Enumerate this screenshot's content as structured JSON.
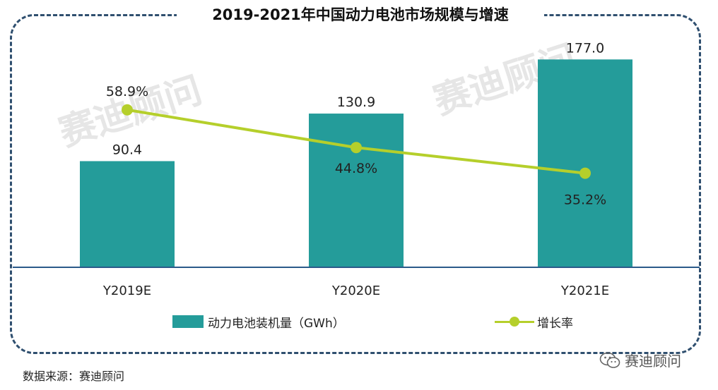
{
  "title": "2019-2021年中国动力电池市场规模与增速",
  "chart_data": {
    "type": "bar",
    "categories": [
      "Y2019E",
      "Y2020E",
      "Y2021E"
    ],
    "series": [
      {
        "name": "动力电池装机量（GWh）",
        "type": "bar",
        "values": [
          90.4,
          130.9,
          177.0
        ],
        "labels": [
          "90.4",
          "130.9",
          "177.0"
        ],
        "color": "#249c9a"
      },
      {
        "name": "增长率",
        "type": "line",
        "values": [
          58.9,
          44.8,
          35.2
        ],
        "labels": [
          "58.9%",
          "44.8%",
          "35.2%"
        ],
        "color": "#b5cf2b"
      }
    ],
    "ylim": [
      0,
      200
    ],
    "y2lim": [
      0,
      100
    ],
    "grid": false,
    "legend": "bottom",
    "axis_color": "#2b5a8a"
  },
  "legend": {
    "bar_label": "动力电池装机量（GWh）",
    "line_label": "增长率"
  },
  "source": "数据来源：赛迪顾问",
  "brand": {
    "icon": "wechat-icon",
    "label": "赛迪顾问"
  },
  "watermark": {
    "text": "赛迪顾问",
    "color": "#e6e6e6"
  }
}
